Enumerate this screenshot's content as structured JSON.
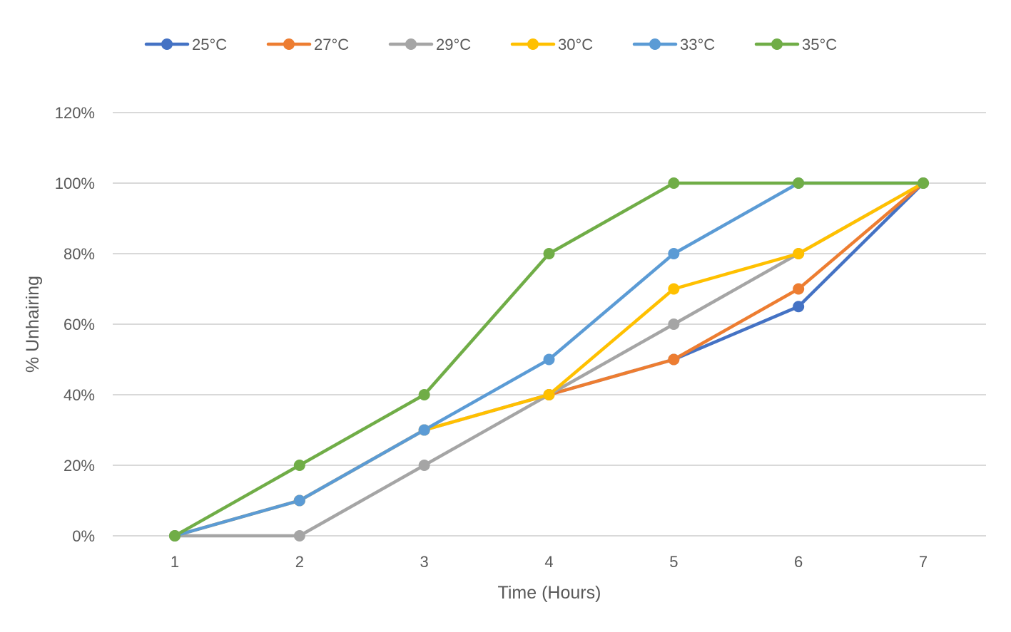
{
  "chart_data": {
    "type": "line",
    "title": "",
    "xlabel": "Time (Hours)",
    "ylabel": "% Unhairing",
    "x": [
      1,
      2,
      3,
      4,
      5,
      6,
      7
    ],
    "x_tick_labels": [
      "1",
      "2",
      "3",
      "4",
      "5",
      "6",
      "7"
    ],
    "y_tick_labels": [
      "0%",
      "20%",
      "40%",
      "60%",
      "80%",
      "100%",
      "120%"
    ],
    "ylim": [
      0,
      120
    ],
    "y_unit": "%",
    "grid": "horizontal",
    "legend_position": "top",
    "markers": "circle",
    "series": [
      {
        "name": "25°C",
        "color": "#4472C4",
        "values": [
          0,
          10,
          30,
          40,
          50,
          65,
          100
        ]
      },
      {
        "name": "27°C",
        "color": "#ED7D31",
        "values": [
          0,
          10,
          30,
          40,
          50,
          70,
          100
        ]
      },
      {
        "name": "29°C",
        "color": "#A5A5A5",
        "values": [
          0,
          0,
          20,
          40,
          60,
          80,
          100
        ]
      },
      {
        "name": "30°C",
        "color": "#FFC000",
        "values": [
          0,
          10,
          30,
          40,
          70,
          80,
          100
        ]
      },
      {
        "name": "33°C",
        "color": "#5B9BD5",
        "values": [
          0,
          10,
          30,
          50,
          80,
          100,
          100
        ]
      },
      {
        "name": "35°C",
        "color": "#70AD47",
        "values": [
          0,
          20,
          40,
          80,
          100,
          100,
          100
        ]
      }
    ]
  }
}
